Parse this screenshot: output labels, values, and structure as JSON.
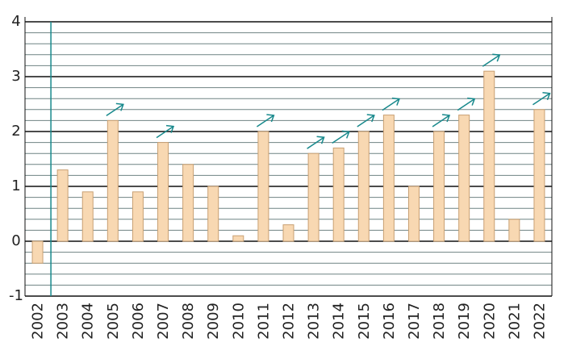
{
  "chart_data": {
    "type": "bar",
    "categories": [
      "2002",
      "2003",
      "2004",
      "2005",
      "2006",
      "2007",
      "2008",
      "2009",
      "2010",
      "2011",
      "2012",
      "2013",
      "2014",
      "2015",
      "2016",
      "2017",
      "2018",
      "2019",
      "2020",
      "2021",
      "2022"
    ],
    "values": [
      -0.4,
      1.3,
      0.9,
      2.2,
      0.9,
      1.8,
      1.4,
      1.0,
      0.1,
      2.0,
      0.3,
      1.6,
      1.7,
      2.0,
      2.3,
      1.0,
      2.0,
      2.3,
      3.1,
      0.4,
      2.4
    ],
    "up_arrow": [
      false,
      false,
      false,
      true,
      false,
      true,
      false,
      false,
      false,
      true,
      false,
      true,
      true,
      true,
      true,
      false,
      true,
      true,
      true,
      false,
      true
    ],
    "color": "#f8d8b2",
    "edge_color": "#c9a073",
    "arrow_color": "#18898c",
    "ylim": [
      -1,
      4
    ],
    "yticks": [
      -1,
      0,
      1,
      2,
      3,
      4
    ],
    "yminorticks": [
      -0.8,
      -0.6,
      -0.4,
      -0.2,
      0.2,
      0.4,
      0.6,
      0.8,
      1.2,
      1.4,
      1.6,
      1.8,
      2.2,
      2.4,
      2.6,
      2.8,
      3.2,
      3.4,
      3.6,
      3.8
    ],
    "grid": true
  }
}
